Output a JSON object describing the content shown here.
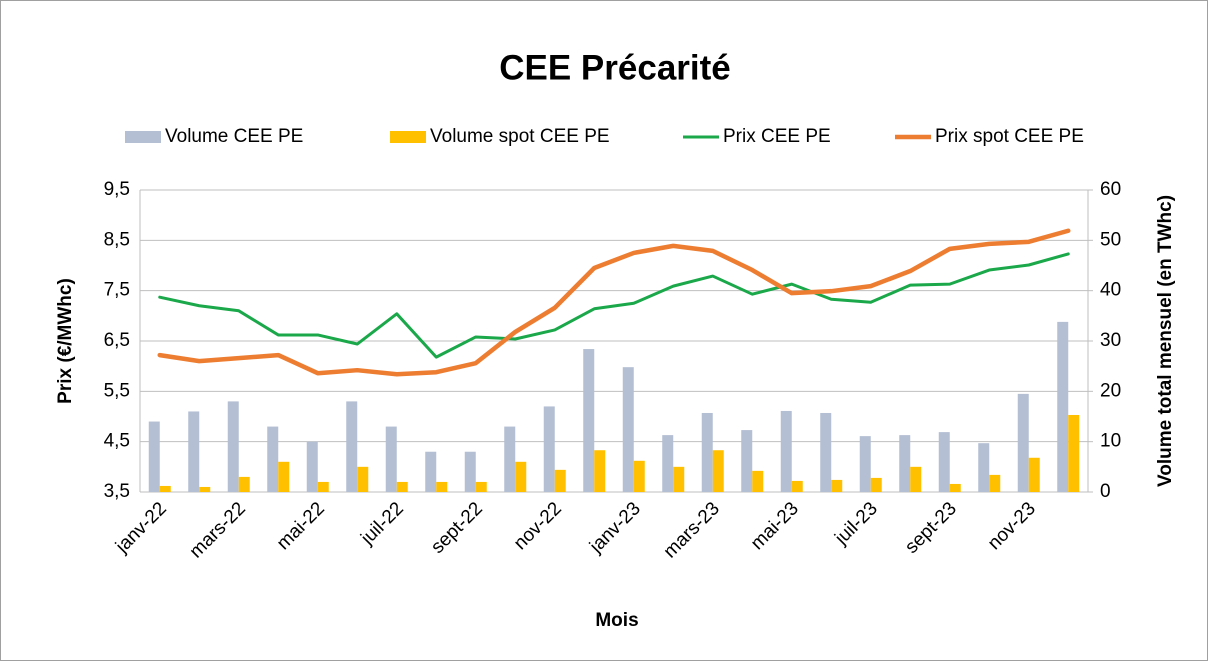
{
  "chart_data": {
    "type": "combo",
    "title": "CEE Précarité",
    "x_label": "Mois",
    "y_label": "Prix (€/MWhc)",
    "y2_label": "Volume total mensuel (en TWhc)",
    "categories": [
      "janv-22",
      null,
      "mars-22",
      null,
      "mai-22",
      null,
      "juil-22",
      null,
      "sept-22",
      null,
      "nov-22",
      null,
      "janv-23",
      null,
      "mars-23",
      null,
      "mai-23",
      null,
      "juil-23",
      null,
      "sept-23",
      null,
      "nov-23",
      null
    ],
    "series": [
      {
        "name": "Volume CEE PE",
        "type": "bar",
        "axis": "y2",
        "color": "#b4bfd3",
        "values": [
          14,
          16,
          18,
          13,
          10,
          18,
          13,
          8,
          8,
          13,
          17,
          28.4,
          24.8,
          11.3,
          15.7,
          12.3,
          16.1,
          15.7,
          11.1,
          11.3,
          11.9,
          9.7,
          19.5,
          33.8
        ]
      },
      {
        "name": "Volume spot CEE PE",
        "type": "bar",
        "axis": "y2",
        "color": "#ffc000",
        "values": [
          1.2,
          1,
          3,
          6,
          2,
          5,
          2,
          2,
          2,
          6,
          4.4,
          8.3,
          6.2,
          5,
          8.3,
          4.2,
          2.2,
          2.4,
          2.8,
          5,
          1.6,
          3.4,
          6.8,
          15.3
        ]
      },
      {
        "name": "Prix CEE PE",
        "type": "line",
        "axis": "y",
        "color": "#1aa84a",
        "values": [
          7.37,
          7.2,
          7.1,
          6.62,
          6.62,
          6.44,
          7.04,
          6.18,
          6.58,
          6.54,
          6.72,
          7.14,
          7.25,
          7.59,
          7.79,
          7.43,
          7.63,
          7.33,
          7.27,
          7.61,
          7.63,
          7.91,
          8.01,
          8.23
        ]
      },
      {
        "name": "Prix spot CEE PE",
        "type": "line",
        "axis": "y",
        "color": "#ed7d31",
        "values": [
          6.22,
          6.1,
          6.16,
          6.22,
          5.86,
          5.92,
          5.84,
          5.88,
          6.06,
          6.68,
          7.16,
          7.95,
          8.25,
          8.39,
          8.29,
          7.91,
          7.45,
          7.49,
          7.59,
          7.89,
          8.33,
          8.43,
          8.47,
          8.69
        ]
      }
    ],
    "ylim": [
      3.5,
      9.5
    ],
    "yticks": [
      {
        "value": 3.5,
        "label": "3,5"
      },
      {
        "value": 4.5,
        "label": "4,5"
      },
      {
        "value": 5.5,
        "label": "5,5"
      },
      {
        "value": 6.5,
        "label": "6,5"
      },
      {
        "value": 7.5,
        "label": "7,5"
      },
      {
        "value": 8.5,
        "label": "8,5"
      },
      {
        "value": 9.5,
        "label": "9,5"
      }
    ],
    "y2lim": [
      0,
      60
    ],
    "y2ticks": [
      0,
      10,
      20,
      30,
      40,
      50,
      60
    ],
    "grid": true,
    "legend": "top"
  }
}
